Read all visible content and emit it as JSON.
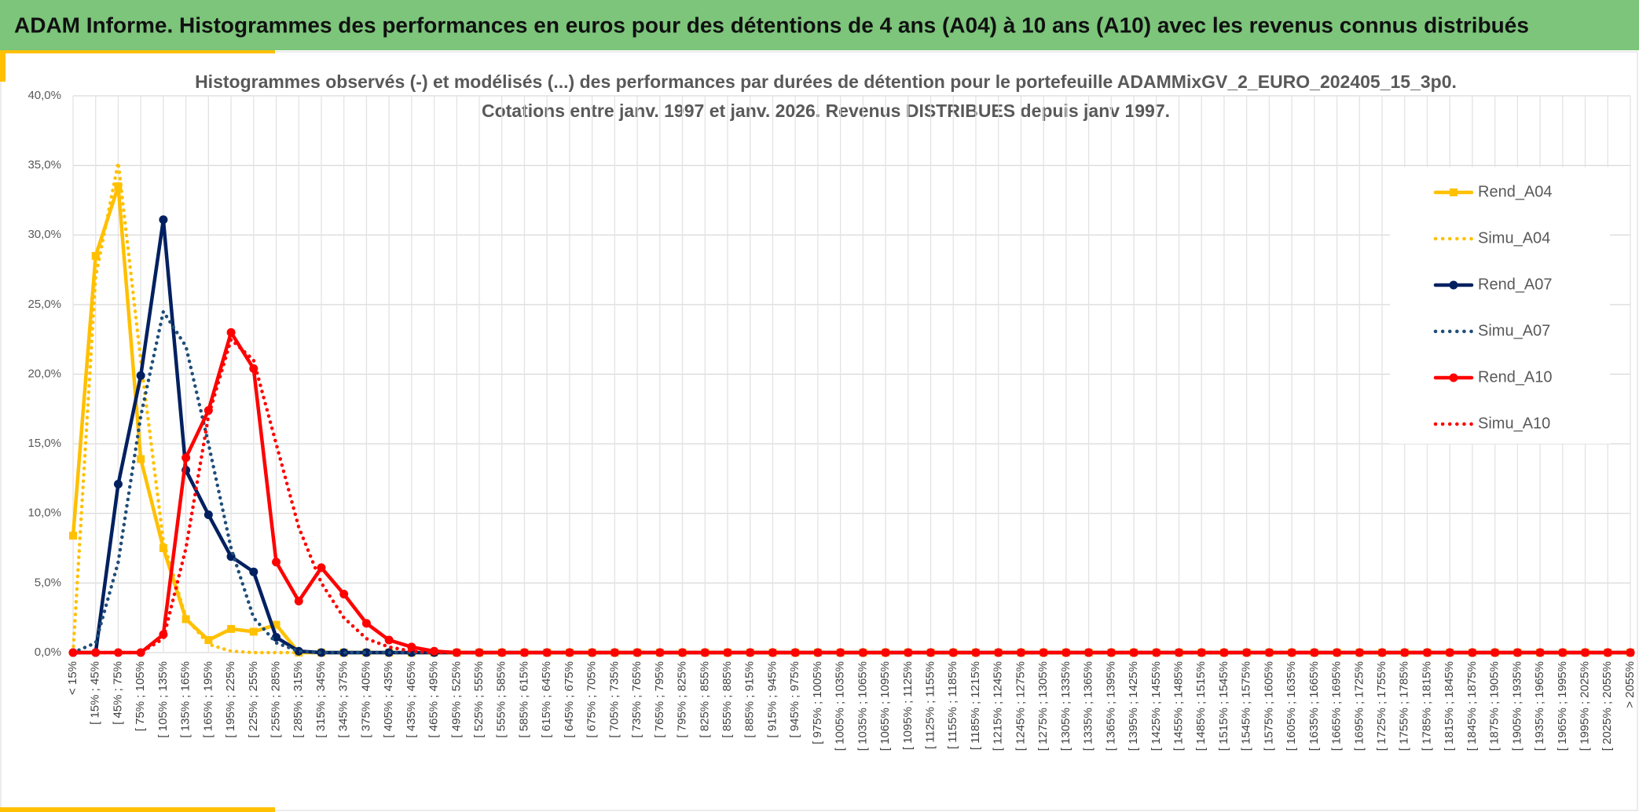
{
  "header": {
    "title": "ADAM Informe. Histogrammes des performances en euros pour des détentions de 4 ans (A04) à 10 ans (A10) avec les revenus connus distribués"
  },
  "chart_data": {
    "type": "line",
    "title": [
      "Histogrammes observés (-) et modélisés (...) des performances par durées de détention pour le portefeuille ADAMMixGV_2_EURO_202405_15_3p0.",
      "Cotations entre janv. 1997 et janv. 2026. Revenus DISTRIBUES depuis janv 1997."
    ],
    "categories": [
      "< 15%",
      "[ 15% ; 45%",
      "[ 45% ; 75%",
      "[ 75% ; 105%",
      "[ 105% ; 135%",
      "[ 135% ; 165%",
      "[ 165% ; 195%",
      "[ 195% ; 225%",
      "[ 225% ; 255%",
      "[ 255% ; 285%",
      "[ 285% ; 315%",
      "[ 315% ; 345%",
      "[ 345% ; 375%",
      "[ 375% ; 405%",
      "[ 405% ; 435%",
      "[ 435% ; 465%",
      "[ 465% ; 495%",
      "[ 495% ; 525%",
      "[ 525% ; 555%",
      "[ 555% ; 585%",
      "[ 585% ; 615%",
      "[ 615% ; 645%",
      "[ 645% ; 675%",
      "[ 675% ; 705%",
      "[ 705% ; 735%",
      "[ 735% ; 765%",
      "[ 765% ; 795%",
      "[ 795% ; 825%",
      "[ 825% ; 855%",
      "[ 855% ; 885%",
      "[ 885% ; 915%",
      "[ 915% ; 945%",
      "[ 945% ; 975%",
      "[ 975% ; 1005%",
      "[ 1005% ; 1035%",
      "[ 1035% ; 1065%",
      "[ 1065% ; 1095%",
      "[ 1095% ; 1125%",
      "[ 1125% ; 1155%",
      "[ 1155% ; 1185%",
      "[ 1185% ; 1215%",
      "[ 1215% ; 1245%",
      "[ 1245% ; 1275%",
      "[ 1275% ; 1305%",
      "[ 1305% ; 1335%",
      "[ 1335% ; 1365%",
      "[ 1365% ; 1395%",
      "[ 1395% ; 1425%",
      "[ 1425% ; 1455%",
      "[ 1455% ; 1485%",
      "[ 1485% ; 1515%",
      "[ 1515% ; 1545%",
      "[ 1545% ; 1575%",
      "[ 1575% ; 1605%",
      "[ 1605% ; 1635%",
      "[ 1635% ; 1665%",
      "[ 1665% ; 1695%",
      "[ 1695% ; 1725%",
      "[ 1725% ; 1755%",
      "[ 1755% ; 1785%",
      "[ 1785% ; 1815%",
      "[ 1815% ; 1845%",
      "[ 1845% ; 1875%",
      "[ 1875% ; 1905%",
      "[ 1905% ; 1935%",
      "[ 1935% ; 1965%",
      "[ 1965% ; 1995%",
      "[ 1995% ; 2025%",
      "[ 2025% ; 2055%",
      "> 2055%"
    ],
    "series": [
      {
        "name": "Rend_A04",
        "color": "#ffc000",
        "style": "solid",
        "marker": "square",
        "values": [
          8.4,
          28.5,
          33.5,
          13.9,
          7.5,
          2.4,
          0.9,
          1.7,
          1.5,
          2.0,
          0,
          0,
          0,
          0,
          0,
          0,
          0,
          0,
          0,
          0,
          0,
          0,
          0,
          0,
          0,
          0,
          0,
          0,
          0,
          0,
          0,
          0,
          0,
          0,
          0,
          0,
          0,
          0,
          0,
          0,
          0,
          0,
          0,
          0,
          0,
          0,
          0,
          0,
          0,
          0,
          0,
          0,
          0,
          0,
          0,
          0,
          0,
          0,
          0,
          0,
          0,
          0,
          0,
          0,
          0,
          0,
          0,
          0,
          0,
          0
        ]
      },
      {
        "name": "Simu_A04",
        "color": "#ffc000",
        "style": "dotted",
        "values": [
          0,
          27,
          35.2,
          21,
          8,
          2.5,
          0.6,
          0.1,
          0,
          0,
          0,
          0,
          0,
          0,
          0,
          0,
          0,
          0,
          0,
          0,
          0,
          0,
          0,
          0,
          0,
          0,
          0,
          0,
          0,
          0,
          0,
          0,
          0,
          0,
          0,
          0,
          0,
          0,
          0,
          0,
          0,
          0,
          0,
          0,
          0,
          0,
          0,
          0,
          0,
          0,
          0,
          0,
          0,
          0,
          0,
          0,
          0,
          0,
          0,
          0,
          0,
          0,
          0,
          0,
          0,
          0,
          0,
          0,
          0,
          0
        ]
      },
      {
        "name": "Rend_A07",
        "color": "#002060",
        "style": "solid",
        "marker": "circle",
        "values": [
          0,
          0,
          12.1,
          19.9,
          31.1,
          13.1,
          9.9,
          6.9,
          5.8,
          1.1,
          0.1,
          0,
          0,
          0,
          0,
          0,
          0,
          0,
          0,
          0,
          0,
          0,
          0,
          0,
          0,
          0,
          0,
          0,
          0,
          0,
          0,
          0,
          0,
          0,
          0,
          0,
          0,
          0,
          0,
          0,
          0,
          0,
          0,
          0,
          0,
          0,
          0,
          0,
          0,
          0,
          0,
          0,
          0,
          0,
          0,
          0,
          0,
          0,
          0,
          0,
          0,
          0,
          0,
          0,
          0,
          0,
          0,
          0,
          0,
          0
        ]
      },
      {
        "name": "Simu_A07",
        "color": "#1f4e79",
        "style": "dotted",
        "values": [
          0,
          0.7,
          6.5,
          17,
          24.5,
          22,
          15,
          7.5,
          2.5,
          0.7,
          0.1,
          0,
          0,
          0,
          0,
          0,
          0,
          0,
          0,
          0,
          0,
          0,
          0,
          0,
          0,
          0,
          0,
          0,
          0,
          0,
          0,
          0,
          0,
          0,
          0,
          0,
          0,
          0,
          0,
          0,
          0,
          0,
          0,
          0,
          0,
          0,
          0,
          0,
          0,
          0,
          0,
          0,
          0,
          0,
          0,
          0,
          0,
          0,
          0,
          0,
          0,
          0,
          0,
          0,
          0,
          0,
          0,
          0,
          0,
          0
        ]
      },
      {
        "name": "Rend_A10",
        "color": "#ff0000",
        "style": "solid",
        "marker": "circle",
        "values": [
          0,
          0,
          0,
          0,
          1.3,
          14.0,
          17.4,
          23.0,
          20.4,
          6.5,
          3.7,
          6.1,
          4.2,
          2.1,
          0.9,
          0.4,
          0.1,
          0,
          0,
          0,
          0,
          0,
          0,
          0,
          0,
          0,
          0,
          0,
          0,
          0,
          0,
          0,
          0,
          0,
          0,
          0,
          0,
          0,
          0,
          0,
          0,
          0,
          0,
          0,
          0,
          0,
          0,
          0,
          0,
          0,
          0,
          0,
          0,
          0,
          0,
          0,
          0,
          0,
          0,
          0,
          0,
          0,
          0,
          0,
          0,
          0,
          0,
          0,
          0,
          0
        ]
      },
      {
        "name": "Simu_A10",
        "color": "#ff0000",
        "style": "dotted",
        "values": [
          0,
          0,
          0,
          0,
          1.0,
          7.5,
          17,
          22.5,
          21,
          15,
          9,
          5,
          2.5,
          1,
          0.4,
          0.1,
          0,
          0,
          0,
          0,
          0,
          0,
          0,
          0,
          0,
          0,
          0,
          0,
          0,
          0,
          0,
          0,
          0,
          0,
          0,
          0,
          0,
          0,
          0,
          0,
          0,
          0,
          0,
          0,
          0,
          0,
          0,
          0,
          0,
          0,
          0,
          0,
          0,
          0,
          0,
          0,
          0,
          0,
          0,
          0,
          0,
          0,
          0,
          0,
          0,
          0,
          0,
          0,
          0,
          0
        ]
      }
    ],
    "ylim": [
      0,
      40
    ],
    "yticks": [
      {
        "value": 0,
        "label": "0,0%"
      },
      {
        "value": 5,
        "label": "5,0%"
      },
      {
        "value": 10,
        "label": "10,0%"
      },
      {
        "value": 15,
        "label": "15,0%"
      },
      {
        "value": 20,
        "label": "20,0%"
      },
      {
        "value": 25,
        "label": "25,0%"
      },
      {
        "value": 30,
        "label": "30,0%"
      },
      {
        "value": 35,
        "label": "35,0%"
      },
      {
        "value": 40,
        "label": "40,0%"
      }
    ],
    "grid": true,
    "legend": "right"
  }
}
